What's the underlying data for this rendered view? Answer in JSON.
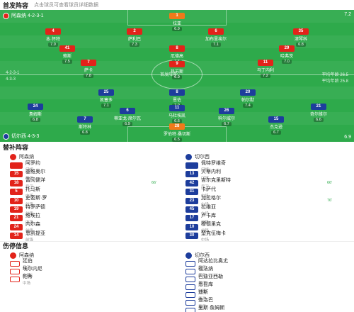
{
  "header": {
    "title": "首发阵容",
    "subtitle": "点击球员可查看球员详细数据"
  },
  "teams": {
    "home": {
      "name": "阿森纳",
      "formation": "4-2-3-1",
      "rating": "7.2",
      "color": "#e2231a"
    },
    "away": {
      "name": "切尔西",
      "formation": "4-3-3",
      "rating": "6.9",
      "color": "#1d3d9c"
    }
  },
  "pitch": {
    "home_label": "阿森纳 4-2-3-1",
    "away_label": "切尔西 4-3-3",
    "mid_left_home": "4-2-3-1",
    "mid_left_away": "4-3-3",
    "mid_right_home": "平均年龄 26.5",
    "mid_right_away": "平均年龄 25.8",
    "center_text": "首发阵容"
  },
  "home_players": [
    {
      "num": "1",
      "name": "拉亚",
      "rating": "6.9"
    },
    {
      "num": "4",
      "name": "本·怀特",
      "rating": "7.0"
    },
    {
      "num": "2",
      "name": "萨利巴",
      "rating": "7.3"
    },
    {
      "num": "6",
      "name": "加布里埃尔",
      "rating": "7.1"
    },
    {
      "num": "35",
      "name": "津琴科",
      "rating": "6.8"
    },
    {
      "num": "41",
      "name": "赖斯",
      "rating": "7.5"
    },
    {
      "num": "8",
      "name": "厄德高",
      "rating": "7.6"
    },
    {
      "num": "29",
      "name": "哈弗茨",
      "rating": "7.0"
    },
    {
      "num": "7",
      "name": "萨卡",
      "rating": "7.8"
    },
    {
      "num": "9",
      "name": "热苏斯",
      "rating": "6.9"
    },
    {
      "num": "11",
      "name": "马丁内利",
      "rating": "7.2"
    }
  ],
  "away_players": [
    {
      "num": "28",
      "name": "罗伯特·桑切斯",
      "rating": "6.5"
    },
    {
      "num": "24",
      "name": "詹姆斯",
      "rating": "6.8"
    },
    {
      "num": "6",
      "name": "蒂亚戈·席尔瓦",
      "rating": "6.9"
    },
    {
      "num": "26",
      "name": "科尔威尔",
      "rating": "6.7"
    },
    {
      "num": "21",
      "name": "奇尔维尔",
      "rating": "6.6"
    },
    {
      "num": "25",
      "name": "凯塞多",
      "rating": "7.1"
    },
    {
      "num": "8",
      "name": "恩佐",
      "rating": "7.0"
    },
    {
      "num": "20",
      "name": "帕尔默",
      "rating": "7.4"
    },
    {
      "num": "7",
      "name": "斯特林",
      "rating": "6.8"
    },
    {
      "num": "15",
      "name": "杰克逊",
      "rating": "6.7"
    },
    {
      "num": "11",
      "name": "马杜埃凯",
      "rating": "6.6"
    }
  ],
  "bench": {
    "title": "替补阵容",
    "home_title": "阿森纳",
    "away_title": "切尔西",
    "home": [
      {
        "num": "",
        "name": "阿罗约",
        "pos": "门将"
      },
      {
        "num": "15",
        "name": "基维奥尔",
        "pos": "后卫",
        "note": ""
      },
      {
        "num": "18",
        "name": "富冈健洋",
        "pos": "后卫",
        "note": "66'"
      },
      {
        "num": "5",
        "name": "托马斯",
        "pos": "中场",
        "note": ""
      },
      {
        "num": "10",
        "name": "史密斯·罗",
        "pos": "前锋",
        "note": ""
      },
      {
        "num": "19",
        "name": "特罗萨德",
        "pos": "前锋",
        "note": ""
      },
      {
        "num": "21",
        "name": "维埃拉",
        "pos": "中场",
        "note": ""
      },
      {
        "num": "24",
        "name": "内尔森",
        "pos": "前锋",
        "note": ""
      },
      {
        "num": "14",
        "name": "恩凯提亚",
        "pos": "前锋",
        "note": ""
      }
    ],
    "away": [
      {
        "num": "",
        "name": "佩特罗维奇",
        "pos": "门将"
      },
      {
        "num": "13",
        "name": "贝蒂内利",
        "pos": "门将",
        "note": ""
      },
      {
        "num": "42",
        "name": "吉尔克里斯特",
        "pos": "后卫",
        "note": "66'"
      },
      {
        "num": "31",
        "name": "卡萨代",
        "pos": "中场",
        "note": ""
      },
      {
        "num": "23",
        "name": "加拉格尔",
        "pos": "中场",
        "note": "76'"
      },
      {
        "num": "45",
        "name": "拉维亚",
        "pos": "中场",
        "note": ""
      },
      {
        "num": "17",
        "name": "卢卡库",
        "pos": "前锋",
        "note": ""
      },
      {
        "num": "10",
        "name": "穆德里克",
        "pos": "前锋",
        "note": ""
      },
      {
        "num": "30",
        "name": "楚克伍梅卡",
        "pos": "中场",
        "note": ""
      }
    ]
  },
  "injuries": {
    "title": "伤停信息",
    "home_title": "阿森纳",
    "away_title": "切尔西",
    "home": [
      {
        "name": "廷伯",
        "pos": "后卫"
      },
      {
        "name": "埃尔内尼",
        "pos": "中场"
      },
      {
        "name": "帕蒂",
        "pos": "中场"
      }
    ],
    "away": [
      {
        "name": "阿达拉比奥尤",
        "pos": "后卫"
      },
      {
        "name": "福法纳",
        "pos": "后卫"
      },
      {
        "name": "巴迪亚西勒",
        "pos": "后卫"
      },
      {
        "name": "恩昆库",
        "pos": "前锋"
      },
      {
        "name": "迪斯",
        "pos": "后卫"
      },
      {
        "name": "查洛巴",
        "pos": "后卫"
      },
      {
        "name": "里斯·詹姆斯",
        "pos": "后卫"
      }
    ]
  }
}
